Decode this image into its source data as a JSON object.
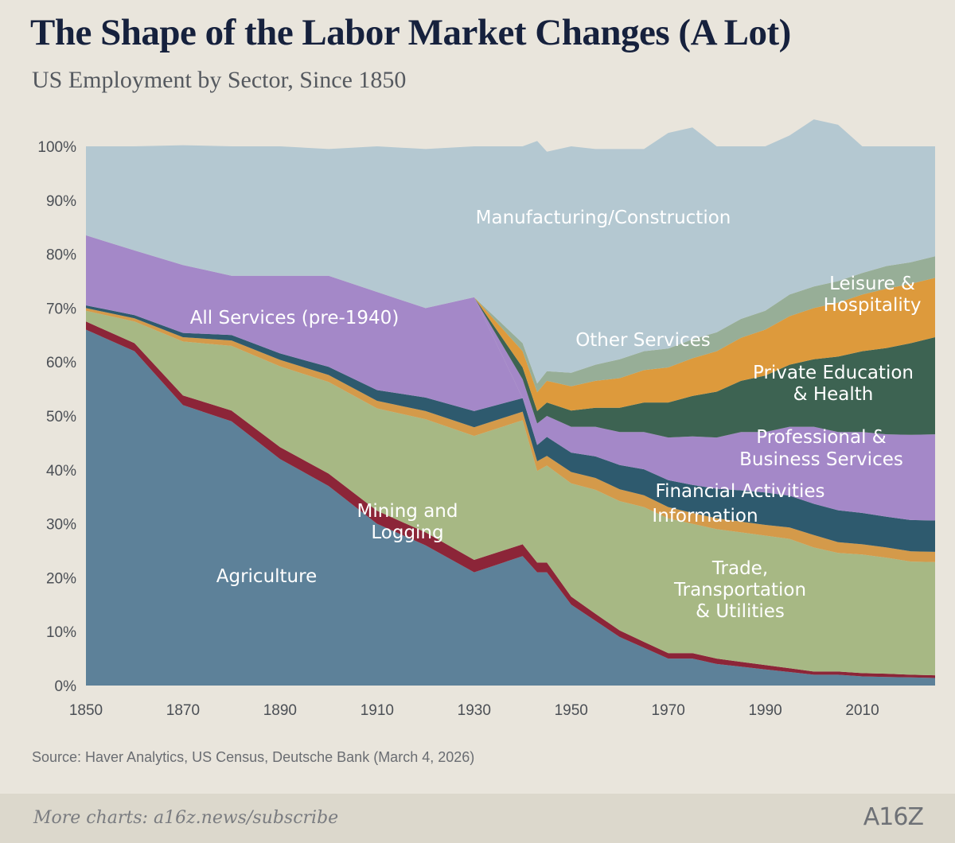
{
  "header": {
    "title": "The Shape of the Labor Market Changes (A Lot)",
    "subtitle": "US Employment by Sector, Since 1850"
  },
  "source": "Source: Haver Analytics, US Census, Deutsche Bank (March 4, 2026)",
  "footer": {
    "cta": "More charts: a16z.news/subscribe",
    "logo": "A16Z"
  },
  "colors": {
    "agriculture": "#5d8199",
    "mining_logging": "#8c2538",
    "trade_transport_utilities": "#a7b884",
    "information": "#d49a4a",
    "financial_activities": "#2e5a6e",
    "all_services_pre1940": "#a488c8",
    "professional_business": "#a488c8",
    "private_education_health": "#3d6352",
    "leisure_hospitality": "#dd9a3c",
    "other_services": "#97ae97",
    "manufacturing_construction": "#b4c8d1"
  },
  "chart_data": {
    "type": "area",
    "stacked": true,
    "title": "The Shape of the Labor Market Changes (A Lot)",
    "subtitle": "US Employment by Sector, Since 1850",
    "xlim": [
      1850,
      2025
    ],
    "ylim": [
      0,
      100
    ],
    "x_ticks": [
      1850,
      1870,
      1890,
      1910,
      1930,
      1950,
      1970,
      1990,
      2010
    ],
    "y_ticks": [
      "0%",
      "10%",
      "20%",
      "30%",
      "40%",
      "50%",
      "60%",
      "70%",
      "80%",
      "90%",
      "100%"
    ],
    "x": [
      1850,
      1860,
      1870,
      1880,
      1890,
      1900,
      1910,
      1920,
      1930,
      1940,
      1943,
      1945,
      1950,
      1955,
      1960,
      1965,
      1970,
      1975,
      1980,
      1985,
      1990,
      1995,
      2000,
      2005,
      2010,
      2015,
      2020,
      2025
    ],
    "series": [
      {
        "name": "Agriculture",
        "key": "agriculture",
        "values": [
          66,
          62,
          52,
          49,
          42,
          37,
          30,
          26,
          21,
          24,
          21,
          21,
          15,
          12,
          9,
          7,
          5,
          5,
          4,
          3.5,
          3,
          2.5,
          2,
          2,
          1.7,
          1.6,
          1.5,
          1.4
        ]
      },
      {
        "name": "Mining and Logging",
        "key": "mining_logging",
        "values": [
          1.5,
          1.5,
          1.8,
          2,
          2.2,
          2.3,
          2.4,
          2.4,
          2.3,
          2.2,
          1.8,
          1.8,
          1.5,
          1.3,
          1.2,
          1.1,
          1,
          1,
          1,
          0.9,
          0.8,
          0.7,
          0.6,
          0.6,
          0.6,
          0.6,
          0.5,
          0.5
        ]
      },
      {
        "name": "Trade, Transportation & Utilities",
        "key": "trade_transport_utilities",
        "values": [
          2,
          4,
          10,
          12,
          15,
          17,
          19,
          21,
          23,
          23,
          17,
          18,
          21,
          23,
          24,
          25,
          25,
          24,
          24,
          24,
          24,
          24,
          23,
          22,
          22,
          21.5,
          21,
          21
        ]
      },
      {
        "name": "Information",
        "key": "information",
        "values": [
          0.5,
          0.6,
          0.8,
          1,
          1.2,
          1.3,
          1.4,
          1.5,
          1.6,
          1.6,
          1.8,
          1.8,
          2.1,
          2.2,
          2.2,
          2.2,
          2.1,
          2,
          2,
          2,
          2,
          2.1,
          2.3,
          2,
          1.9,
          1.9,
          1.9,
          1.9
        ]
      },
      {
        "name": "Financial Activities",
        "key": "financial_activities",
        "values": [
          0.5,
          0.6,
          0.8,
          1,
          1.2,
          1.5,
          2,
          2.5,
          3,
          2.5,
          3,
          3.5,
          3.6,
          4,
          4.5,
          4.8,
          5,
          5.2,
          5.5,
          5.8,
          6,
          5.9,
          5.8,
          5.9,
          5.8,
          5.7,
          5.8,
          5.8
        ]
      },
      {
        "name": "All Services (pre-1940)",
        "key": "all_services_pre1940",
        "values": [
          13,
          12,
          12.6,
          11,
          14.4,
          16.9,
          18.2,
          16.6,
          21.1,
          0,
          0,
          0,
          0,
          0,
          0,
          0,
          0,
          0,
          0,
          0,
          0,
          0,
          0,
          0,
          0,
          0,
          0,
          0
        ]
      },
      {
        "name": "Professional & Business Services",
        "key": "professional_business",
        "values": [
          0,
          0,
          0,
          0,
          0,
          0,
          0,
          0,
          0,
          3.5,
          4,
          3.9,
          4.8,
          5.5,
          6.1,
          6.9,
          7.9,
          9,
          9.5,
          10.8,
          11.2,
          12.8,
          14.3,
          14.5,
          15,
          15.3,
          15.8,
          16
        ]
      },
      {
        "name": "Private Education & Health",
        "key": "private_education_health",
        "values": [
          0,
          0,
          0,
          0,
          0,
          0,
          0,
          0,
          0,
          2.2,
          2.3,
          2.5,
          3,
          3.5,
          4.5,
          5.5,
          6.5,
          7.5,
          8.5,
          9.5,
          10.5,
          11.5,
          12.5,
          14,
          15,
          16,
          17,
          18
        ]
      },
      {
        "name": "Leisure & Hospitality",
        "key": "leisure_hospitality",
        "values": [
          0,
          0,
          0,
          0,
          0,
          0,
          0,
          0,
          0,
          3,
          3.5,
          4,
          4.5,
          5,
          5.5,
          6,
          6.5,
          7,
          7.5,
          8,
          8.5,
          9,
          9.5,
          10,
          10.5,
          11,
          11,
          11
        ]
      },
      {
        "name": "Other Services",
        "key": "other_services",
        "values": [
          0,
          0,
          0,
          0,
          0,
          0,
          0,
          0,
          0,
          1.5,
          1.6,
          1.8,
          2.5,
          3,
          3.5,
          3.5,
          3.5,
          3.5,
          3.5,
          3.5,
          3.5,
          4,
          4,
          4,
          4,
          4.2,
          4,
          4
        ]
      },
      {
        "name": "Manufacturing/Construction",
        "key": "manufacturing_construction",
        "values": [
          16.5,
          19.3,
          22.2,
          24,
          24,
          23.5,
          27,
          29.5,
          28,
          36.5,
          45,
          40.7,
          42,
          40,
          39,
          37.5,
          40,
          39.3,
          34.5,
          32,
          30.5,
          29.5,
          31,
          29,
          23.5,
          22.2,
          21.5,
          20.4
        ]
      }
    ],
    "labels": {
      "agriculture": "Agriculture",
      "mining": [
        "Mining and",
        "Logging"
      ],
      "ttu": [
        "Trade,",
        "Transportation",
        "& Utilities"
      ],
      "information": "Information",
      "financial": "Financial Activities",
      "services_pre1940": "All Services (pre-1940)",
      "professional": [
        "Professional &",
        "Business Services"
      ],
      "education": [
        "Private Education",
        "& Health"
      ],
      "leisure": [
        "Leisure &",
        "Hospitality"
      ],
      "other": "Other Services",
      "manufacturing": "Manufacturing/Construction"
    }
  }
}
